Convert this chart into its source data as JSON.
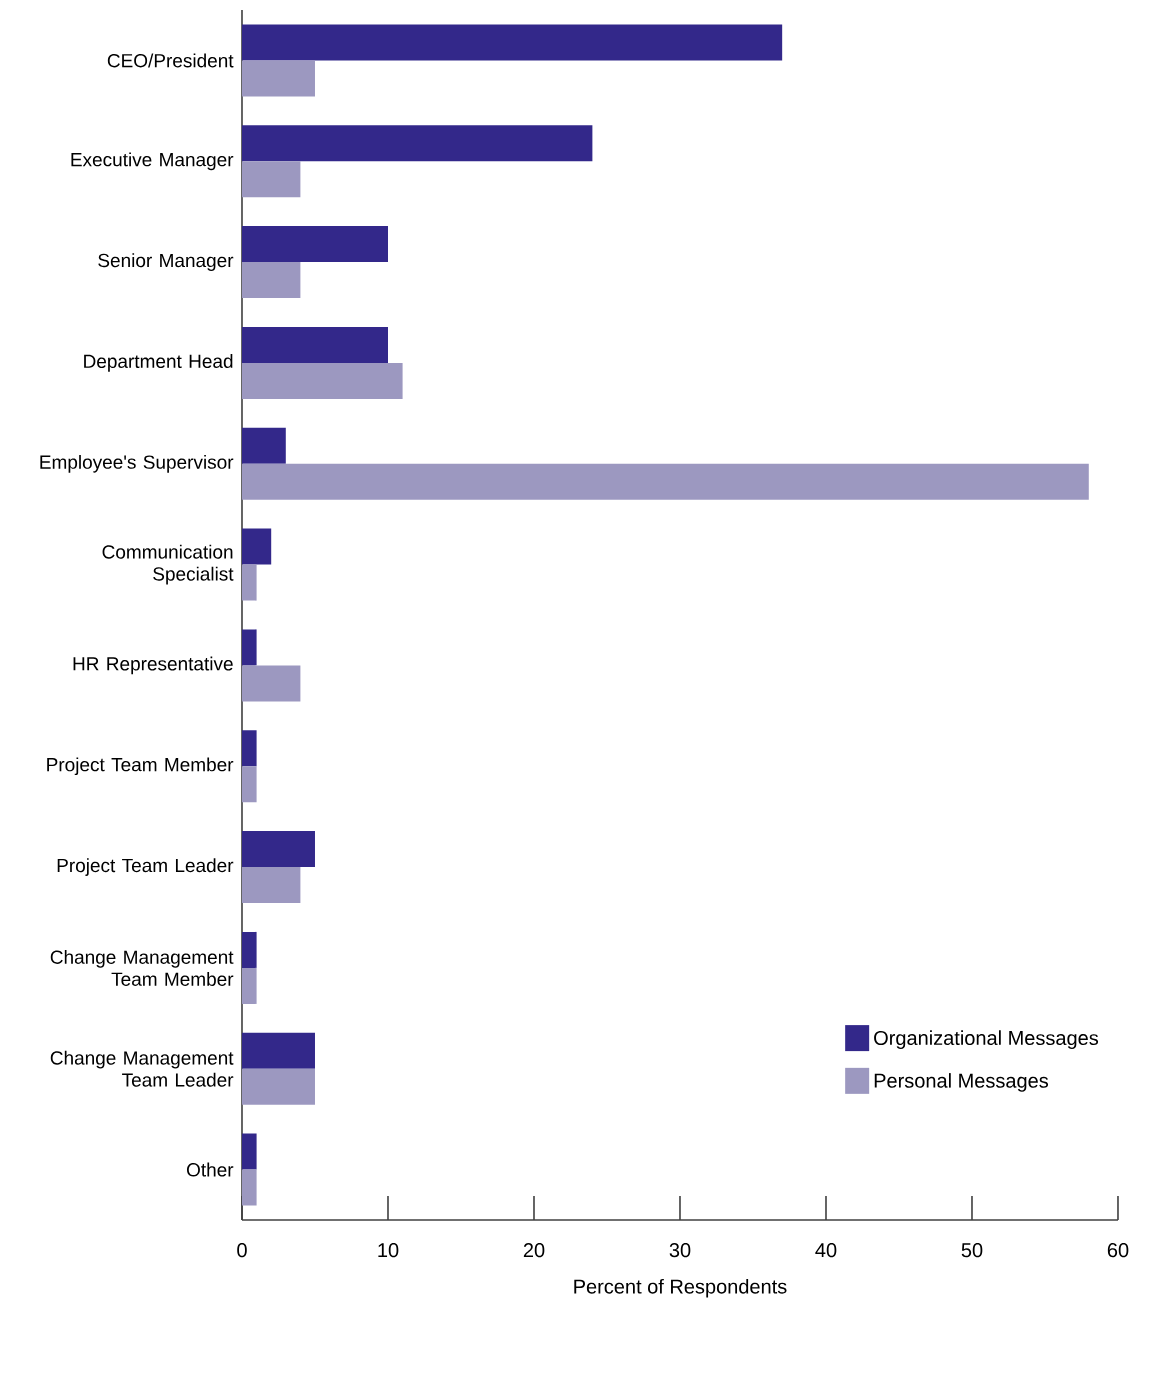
{
  "chart_data": {
    "type": "bar",
    "orientation": "horizontal",
    "xlabel": "Percent of Respondents",
    "categories": [
      "CEO/President",
      "Executive Manager",
      "Senior Manager",
      "Department Head",
      "Employee's Supervisor",
      "Communication Specialist",
      "HR Representative",
      "Project Team Member",
      "Project Team Leader",
      "Change Management Team Member",
      "Change Management Team Leader",
      "Other"
    ],
    "series": [
      {
        "name": "Organizational Messages",
        "color": "#33288a",
        "values": [
          37,
          24,
          10,
          10,
          3,
          2,
          1,
          1,
          5,
          1,
          5,
          1
        ]
      },
      {
        "name": "Personal Messages",
        "color": "#9c98c0",
        "values": [
          5,
          4,
          4,
          11,
          58,
          1,
          4,
          1,
          4,
          1,
          5,
          1
        ]
      }
    ],
    "xlim": [
      0,
      60
    ],
    "xticks": [
      0,
      10,
      20,
      30,
      40,
      50,
      60
    ],
    "legend": "bottom right",
    "grid": false
  }
}
